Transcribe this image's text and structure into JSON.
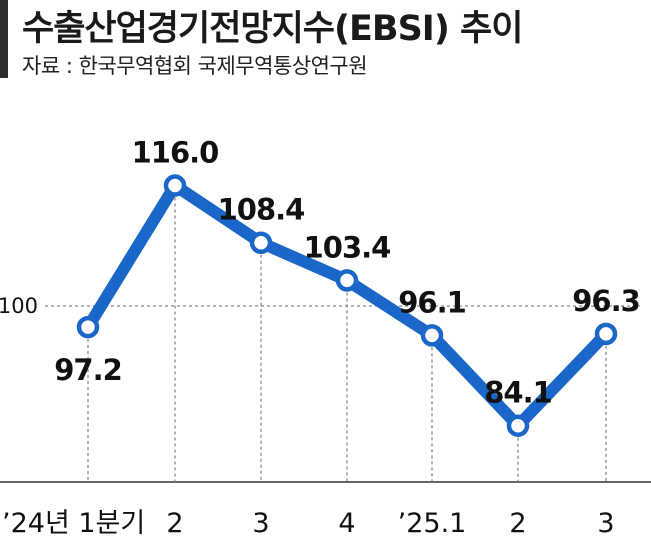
{
  "header": {
    "title": "수출산업경기전망지수(EBSI) 추이",
    "source": "자료 : 한국무역협회 국제무역통상연구원"
  },
  "colors": {
    "line": "#1b66c9",
    "text": "#111111",
    "grid": "#888888"
  },
  "chart_data": {
    "type": "line",
    "title": "수출산업경기전망지수(EBSI) 추이",
    "categories": [
      "’24년 1분기",
      "2",
      "3",
      "4",
      "’25.1",
      "2",
      "3"
    ],
    "values": [
      97.2,
      116.0,
      108.4,
      103.4,
      96.1,
      84.1,
      96.3
    ],
    "value_labels": [
      "97.2",
      "116.0",
      "108.4",
      "103.4",
      "96.1",
      "84.1",
      "96.3"
    ],
    "yticks": [
      100
    ],
    "ytick_labels": [
      "100"
    ],
    "ylim": [
      80,
      122
    ],
    "grid": true
  }
}
